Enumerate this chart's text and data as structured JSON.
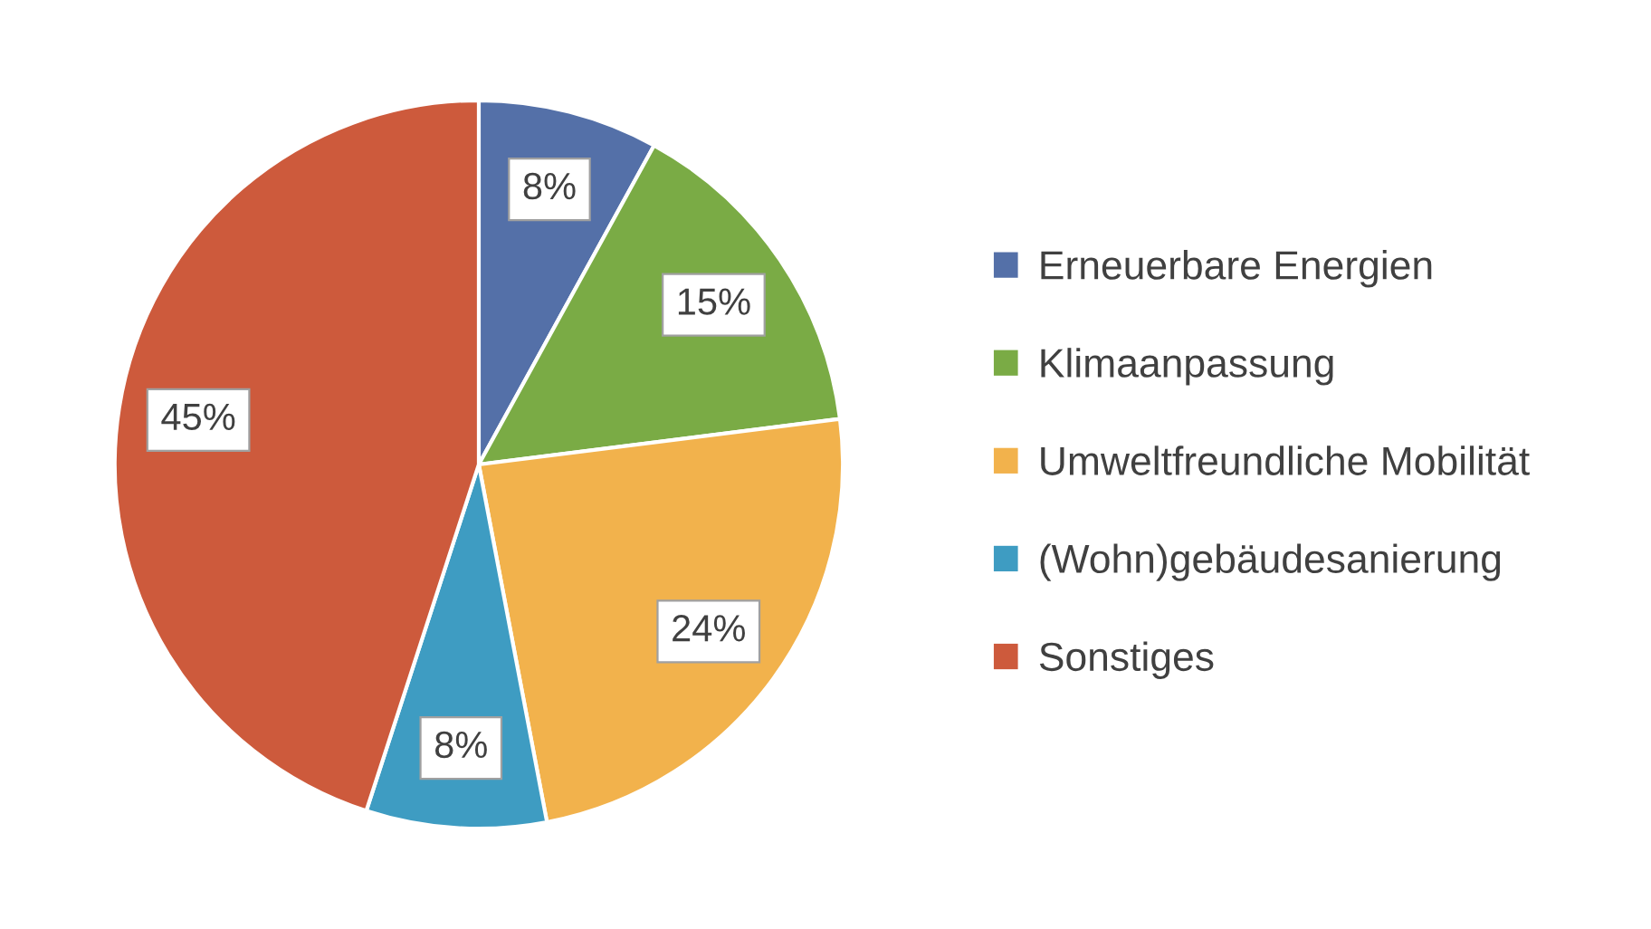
{
  "chart_data": {
    "type": "pie",
    "categories": [
      "Erneuerbare Energien",
      "Klimaanpassung",
      "Umweltfreundliche Mobilität",
      "(Wohn)gebäudesanierung",
      "Sonstiges"
    ],
    "values": [
      8,
      15,
      24,
      8,
      45
    ],
    "colors": [
      "#5470a8",
      "#7aab45",
      "#f2b24c",
      "#3e9cc2",
      "#cd5a3c"
    ],
    "value_labels": [
      "8%",
      "15%",
      "24%",
      "8%",
      "45%"
    ],
    "legend": "right"
  }
}
